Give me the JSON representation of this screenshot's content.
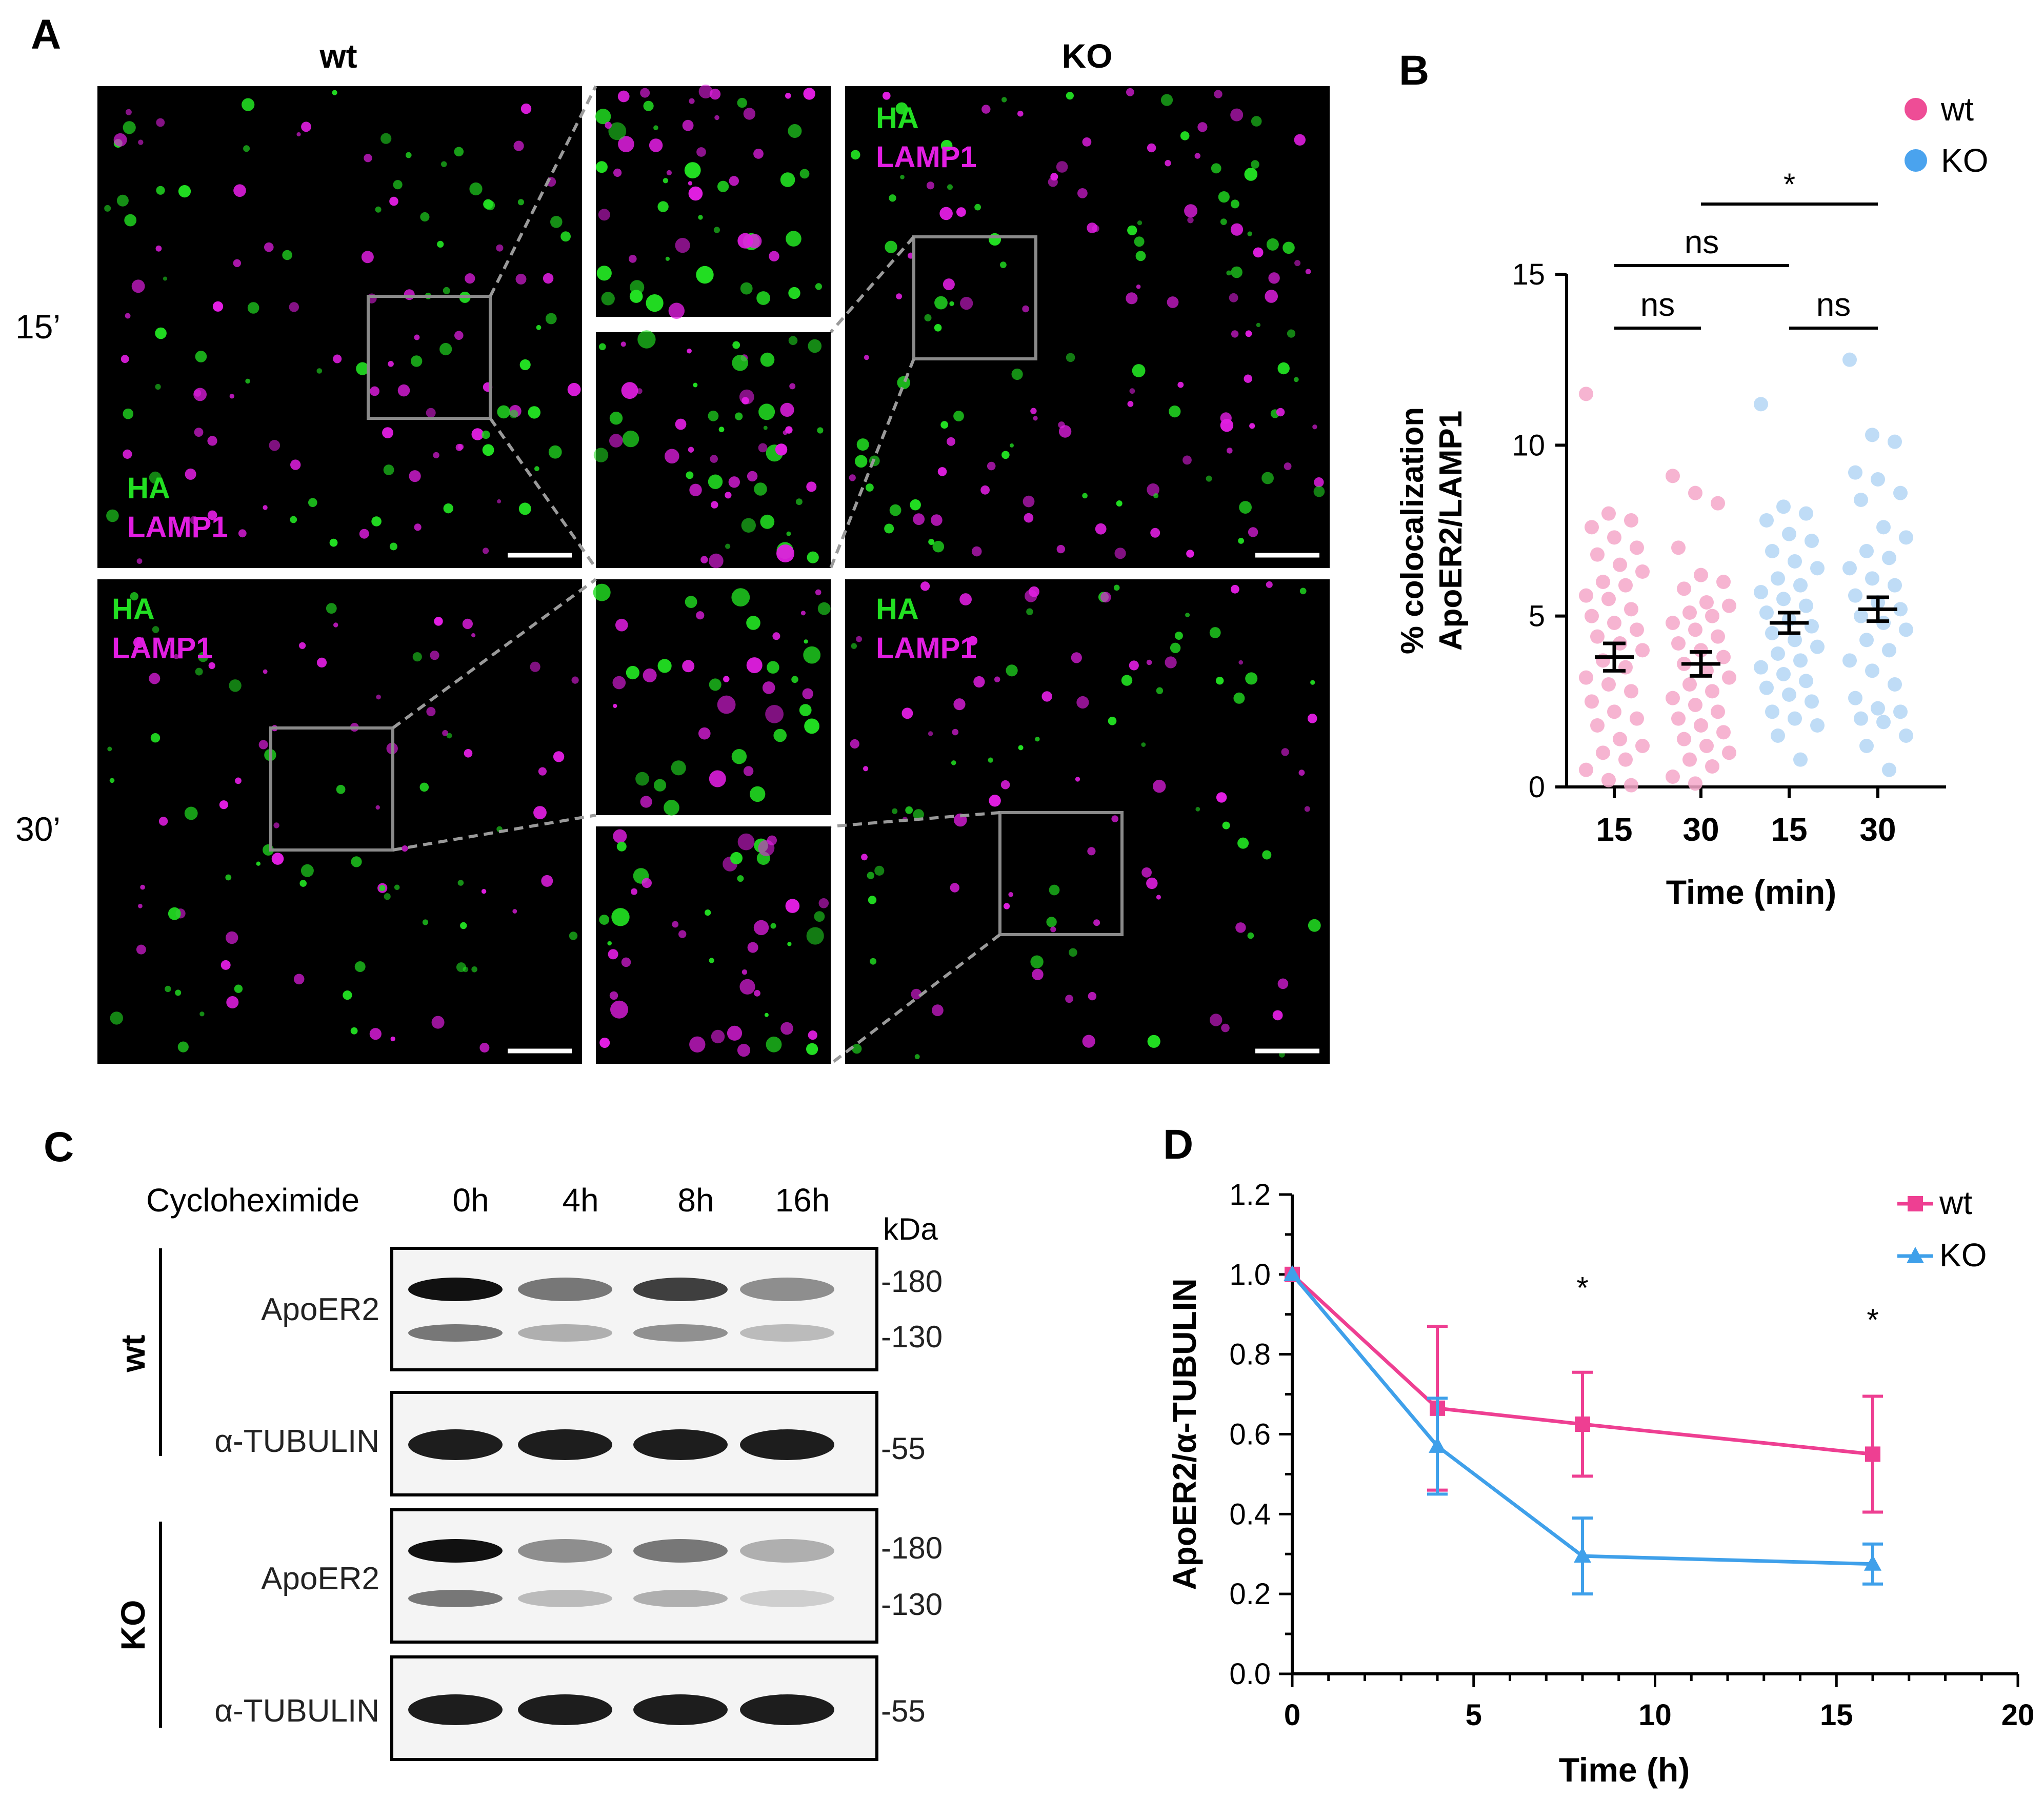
{
  "panel_letters": {
    "a": "A",
    "b": "B",
    "c": "C",
    "d": "D"
  },
  "panel_a": {
    "col_wt": "wt",
    "col_ko": "KO",
    "row_15": "15’",
    "row_30": "30’",
    "ch_ha": "HA",
    "ch_lamp1": "LAMP1",
    "colors": {
      "ha": "#22e022",
      "lamp1": "#e21ee2"
    }
  },
  "panel_c": {
    "treatment": "Cycloheximide",
    "lanes": [
      "0h",
      "4h",
      "8h",
      "16h"
    ],
    "kda": "kDa",
    "groups": [
      {
        "label": "wt",
        "target": "ApoER2",
        "control": "α-TUBULIN",
        "band_intensity": [
          1.0,
          0.55,
          0.8,
          0.45
        ]
      },
      {
        "label": "KO",
        "target": "ApoER2",
        "control": "α-TUBULIN",
        "band_intensity": [
          1.0,
          0.45,
          0.55,
          0.3
        ]
      }
    ],
    "markers": {
      "m180": "-180",
      "m130": "-130",
      "m55": "-55"
    }
  },
  "chart_data": [
    {
      "type": "scatter",
      "panel": "B",
      "ylabel_line1": "% colocalization",
      "ylabel_line2": "ApoER2/LAMP1",
      "xlabel": "Time (min)",
      "categories": [
        "15",
        "30",
        "15",
        "30"
      ],
      "ylim": [
        0,
        15
      ],
      "yticks": [
        0,
        5,
        10,
        15
      ],
      "legend_position": "top-right",
      "series": [
        {
          "name": "wt",
          "color": "#f5a7c9",
          "legend_color": "#ee4d96",
          "groups": [
            {
              "category_index": 0,
              "mean": 3.8,
              "sem": 0.4,
              "points": [
                11.5,
                8.0,
                7.8,
                7.6,
                7.3,
                7.0,
                6.8,
                6.5,
                6.3,
                6.0,
                5.9,
                5.6,
                5.5,
                5.2,
                5.0,
                4.8,
                4.6,
                4.4,
                4.2,
                4.0,
                3.7,
                3.5,
                3.2,
                3.0,
                2.8,
                2.5,
                2.2,
                2.0,
                1.8,
                1.4,
                1.2,
                1.0,
                0.8,
                0.5,
                0.2,
                0.05
              ]
            },
            {
              "category_index": 1,
              "mean": 3.6,
              "sem": 0.35,
              "points": [
                9.1,
                8.6,
                8.3,
                7.0,
                6.2,
                6.0,
                5.8,
                5.4,
                5.3,
                5.1,
                5.0,
                4.8,
                4.6,
                4.4,
                4.2,
                4.0,
                3.8,
                3.6,
                3.4,
                3.2,
                3.0,
                2.8,
                2.6,
                2.4,
                2.2,
                2.0,
                1.8,
                1.6,
                1.4,
                1.2,
                1.0,
                0.8,
                0.6,
                0.3,
                0.1
              ]
            }
          ]
        },
        {
          "name": "KO",
          "color": "#b4d6f4",
          "legend_color": "#4aa3ee",
          "groups": [
            {
              "category_index": 2,
              "mean": 4.8,
              "sem": 0.3,
              "points": [
                11.2,
                8.2,
                8.0,
                7.8,
                7.4,
                7.2,
                6.9,
                6.6,
                6.4,
                6.1,
                5.9,
                5.7,
                5.5,
                5.3,
                5.1,
                4.9,
                4.7,
                4.5,
                4.3,
                4.1,
                3.9,
                3.7,
                3.5,
                3.3,
                3.1,
                2.9,
                2.7,
                2.5,
                2.2,
                2.0,
                1.8,
                1.5,
                0.8
              ]
            },
            {
              "category_index": 3,
              "mean": 5.2,
              "sem": 0.35,
              "points": [
                12.5,
                10.3,
                10.1,
                9.2,
                9.0,
                8.6,
                8.4,
                7.6,
                7.3,
                6.9,
                6.7,
                6.4,
                6.1,
                5.9,
                5.6,
                5.4,
                5.2,
                5.0,
                4.8,
                4.6,
                4.3,
                4.0,
                3.7,
                3.4,
                3.0,
                2.6,
                2.3,
                2.2,
                2.0,
                1.9,
                1.5,
                1.2,
                0.5
              ]
            }
          ]
        }
      ],
      "annotations": [
        {
          "from": 0,
          "to": 1,
          "level": 1,
          "text": "ns"
        },
        {
          "from": 2,
          "to": 3,
          "level": 1,
          "text": "ns"
        },
        {
          "from": 0,
          "to": 2,
          "level": 2,
          "text": "ns"
        },
        {
          "from": 1,
          "to": 3,
          "level": 3,
          "text": "*"
        }
      ]
    },
    {
      "type": "line",
      "panel": "D",
      "ylabel": "ApoER2/α-TUBULIN",
      "xlabel": "Time (h)",
      "xlim": [
        0,
        20
      ],
      "ylim": [
        0,
        1.2
      ],
      "xticks": [
        0,
        5,
        10,
        15,
        20
      ],
      "yticks": [
        "0.0",
        "0.2",
        "0.4",
        "0.6",
        "0.8",
        "1.0",
        "1.2"
      ],
      "legend_position": "top-right",
      "series": [
        {
          "name": "wt",
          "color": "#ee3f92",
          "marker": "square",
          "x": [
            0,
            4,
            8,
            16
          ],
          "y": [
            1.0,
            0.665,
            0.625,
            0.55
          ],
          "err": [
            0.0,
            0.205,
            0.13,
            0.145
          ]
        },
        {
          "name": "KO",
          "color": "#3fa0ea",
          "marker": "triangle",
          "x": [
            0,
            4,
            8,
            16
          ],
          "y": [
            1.0,
            0.57,
            0.295,
            0.275
          ],
          "err": [
            0.0,
            0.12,
            0.095,
            0.05
          ]
        }
      ],
      "significance": [
        {
          "x": 8,
          "y": 0.94,
          "text": "*"
        },
        {
          "x": 16,
          "y": 0.86,
          "text": "*"
        }
      ]
    }
  ]
}
